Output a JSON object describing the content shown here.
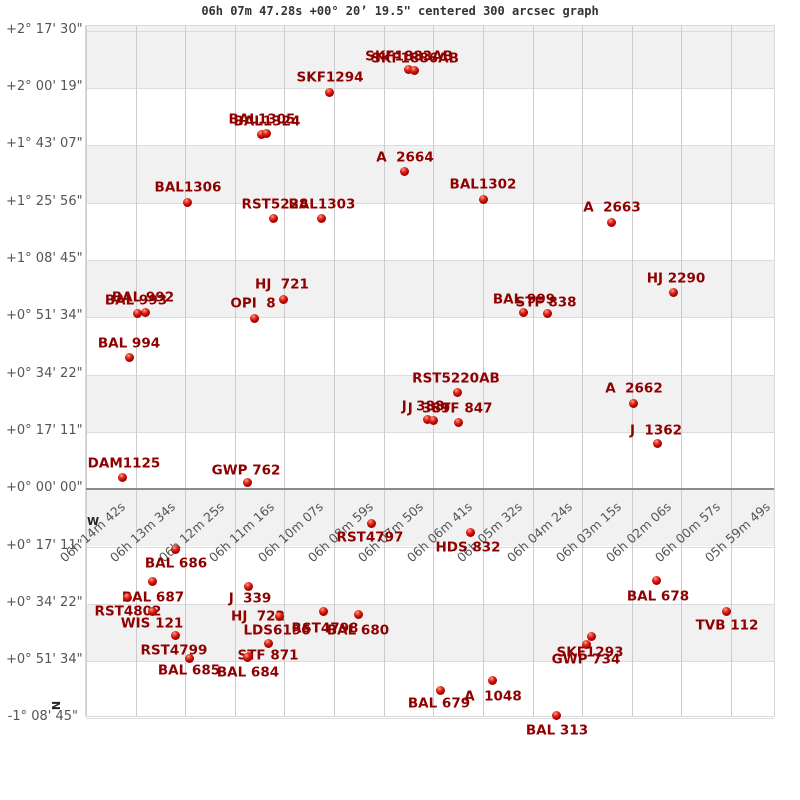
{
  "title": "06h 07m 47.28s +00° 20’ 19.5\" centered 300 arcsec graph",
  "direction_markers": {
    "west": "W",
    "north": "N"
  },
  "colors": {
    "band": "#f1f1f2",
    "grid": "#cccccc",
    "zero_line": "#8a8a8a",
    "tick_text": "#555555",
    "star_text": "#8f0000",
    "star_dot": "#b30000"
  },
  "chart_data": {
    "type": "scatter",
    "title": "06h 07m 47.28s +00° 20’ 19.5\" centered 300 arcsec graph",
    "grid": true,
    "x_axis": {
      "kind": "right ascension",
      "tick_labels": [
        "06h 14m 42s",
        "06h 13m 34s",
        "06h 12m 25s",
        "06h 11m 16s",
        "06h 10m 07s",
        "06h 08m 59s",
        "06h 07m 50s",
        "06h 06m 41s",
        "06h 05m 32s",
        "06h 04m 24s",
        "06h 03m 15s",
        "06h 02m 06s",
        "06h 00m 57s",
        "05h 59m 49s"
      ],
      "rotation_deg": -42
    },
    "y_axis": {
      "kind": "declination",
      "tick_labels": [
        "+2° 17' 30\"",
        "+2° 00' 19\"",
        "+1° 43' 07\"",
        "+1° 25' 56\"",
        "+1° 08' 45\"",
        "+0° 51' 34\"",
        "+0° 34' 22\"",
        "+0° 17' 11\"",
        "+0° 00' 00\"",
        "+0° 17' 11\"",
        "+0° 34' 22\"",
        "+0° 51' 34\"",
        "-1° 08' 45\""
      ]
    },
    "points": [
      {
        "name": "SKF1883AB",
        "dot": [
          408,
          69
        ],
        "label": [
          409,
          57
        ]
      },
      {
        "name": "SKF1886AB",
        "dot": [
          414,
          70
        ],
        "label": [
          415,
          59
        ]
      },
      {
        "name": "SKF1294",
        "dot": [
          329,
          92
        ],
        "label": [
          330,
          78
        ]
      },
      {
        "name": "BAL1305",
        "dot": [
          261,
          134
        ],
        "label": [
          262,
          120
        ]
      },
      {
        "name": "BAL1324",
        "dot": [
          266,
          133
        ],
        "label": [
          267,
          122
        ]
      },
      {
        "name": "A  2664",
        "dot": [
          404,
          171
        ],
        "label": [
          405,
          158
        ]
      },
      {
        "name": "BAL1306",
        "dot": [
          187,
          202
        ],
        "label": [
          188,
          188
        ]
      },
      {
        "name": "RST5228",
        "dot": [
          273,
          218
        ],
        "label": [
          275,
          205
        ]
      },
      {
        "name": "BAL1303",
        "dot": [
          321,
          218
        ],
        "label": [
          322,
          205
        ]
      },
      {
        "name": "BAL1302",
        "dot": [
          483,
          199
        ],
        "label": [
          483,
          185
        ]
      },
      {
        "name": "A  2663",
        "dot": [
          611,
          222
        ],
        "label": [
          612,
          208
        ]
      },
      {
        "name": "HJ 2290",
        "dot": [
          673,
          292
        ],
        "label": [
          676,
          279
        ]
      },
      {
        "name": "HJ  721",
        "dot": [
          283,
          299
        ],
        "label": [
          282,
          285
        ]
      },
      {
        "name": "OPI  8",
        "dot": [
          254,
          318
        ],
        "label": [
          253,
          304
        ]
      },
      {
        "name": "BAL 992",
        "dot": [
          145,
          312
        ],
        "label": [
          143,
          298
        ]
      },
      {
        "name": "BAL 993",
        "dot": [
          137,
          313
        ],
        "label": [
          136,
          301
        ]
      },
      {
        "name": "BAL 994",
        "dot": [
          129,
          357
        ],
        "label": [
          129,
          344
        ]
      },
      {
        "name": "BAL 999",
        "dot": [
          523,
          312
        ],
        "label": [
          524,
          300
        ]
      },
      {
        "name": "STF 838",
        "dot": [
          547,
          313
        ],
        "label": [
          546,
          303
        ]
      },
      {
        "name": "RST5220AB",
        "dot": [
          457,
          392
        ],
        "label": [
          456,
          379
        ]
      },
      {
        "name": "J  388",
        "dot": [
          427,
          419
        ],
        "label": [
          423,
          407
        ]
      },
      {
        "name": "J  389",
        "dot": [
          433,
          420
        ],
        "label": [
          429,
          409
        ]
      },
      {
        "name": "STF 847",
        "dot": [
          458,
          422
        ],
        "label": [
          462,
          409
        ]
      },
      {
        "name": "A  2662",
        "dot": [
          633,
          403
        ],
        "label": [
          634,
          389
        ]
      },
      {
        "name": "J  1362",
        "dot": [
          657,
          443
        ],
        "label": [
          656,
          431
        ]
      },
      {
        "name": "DAM1125",
        "dot": [
          122,
          477
        ],
        "label": [
          124,
          464
        ]
      },
      {
        "name": "GWP 762",
        "dot": [
          247,
          482
        ],
        "label": [
          246,
          471
        ]
      },
      {
        "name": "RST4797",
        "dot": [
          371,
          523
        ],
        "label": [
          370,
          538
        ]
      },
      {
        "name": "HDS 832",
        "dot": [
          470,
          532
        ],
        "label": [
          468,
          548
        ]
      },
      {
        "name": "BAL 686",
        "dot": [
          175,
          549
        ],
        "label": [
          176,
          564
        ]
      },
      {
        "name": "BAL 687",
        "dot": [
          152,
          581
        ],
        "label": [
          153,
          598
        ]
      },
      {
        "name": "RST4802",
        "dot": [
          127,
          597
        ],
        "label": [
          128,
          612
        ]
      },
      {
        "name": "WIS 121",
        "dot": [
          152,
          611
        ],
        "label": [
          152,
          624
        ]
      },
      {
        "name": "RST4799",
        "dot": [
          175,
          635
        ],
        "label": [
          174,
          651
        ]
      },
      {
        "name": "BAL 685",
        "dot": [
          189,
          658
        ],
        "label": [
          189,
          671
        ]
      },
      {
        "name": "J  339",
        "dot": [
          248,
          586
        ],
        "label": [
          250,
          599
        ]
      },
      {
        "name": "HJ  722",
        "dot": [
          279,
          616
        ],
        "label": [
          258,
          617
        ]
      },
      {
        "name": "LDS6196",
        "dot": [
          268,
          643
        ],
        "label": [
          277,
          631
        ]
      },
      {
        "name": "STF 871",
        "dot": [
          248,
          656
        ],
        "label": [
          268,
          656
        ]
      },
      {
        "name": "BAL 684",
        "dot": [
          247,
          657
        ],
        "label": [
          248,
          673
        ]
      },
      {
        "name": "RST4798",
        "dot": [
          323,
          611
        ],
        "label": [
          325,
          629
        ]
      },
      {
        "name": "BAL 680",
        "dot": [
          358,
          614
        ],
        "label": [
          358,
          631
        ]
      },
      {
        "name": "BAL 678",
        "dot": [
          656,
          580
        ],
        "label": [
          658,
          597
        ]
      },
      {
        "name": "TVB 112",
        "dot": [
          726,
          611
        ],
        "label": [
          727,
          626
        ]
      },
      {
        "name": "SKF1293",
        "dot": [
          591,
          636
        ],
        "label": [
          590,
          653
        ]
      },
      {
        "name": "GWP 734",
        "dot": [
          586,
          644
        ],
        "label": [
          586,
          660
        ]
      },
      {
        "name": "BAL 679",
        "dot": [
          440,
          690
        ],
        "label": [
          439,
          704
        ]
      },
      {
        "name": "A  1048",
        "dot": [
          492,
          680
        ],
        "label": [
          493,
          697
        ]
      },
      {
        "name": "BAL 313",
        "dot": [
          556,
          715
        ],
        "label": [
          557,
          731
        ]
      }
    ]
  }
}
